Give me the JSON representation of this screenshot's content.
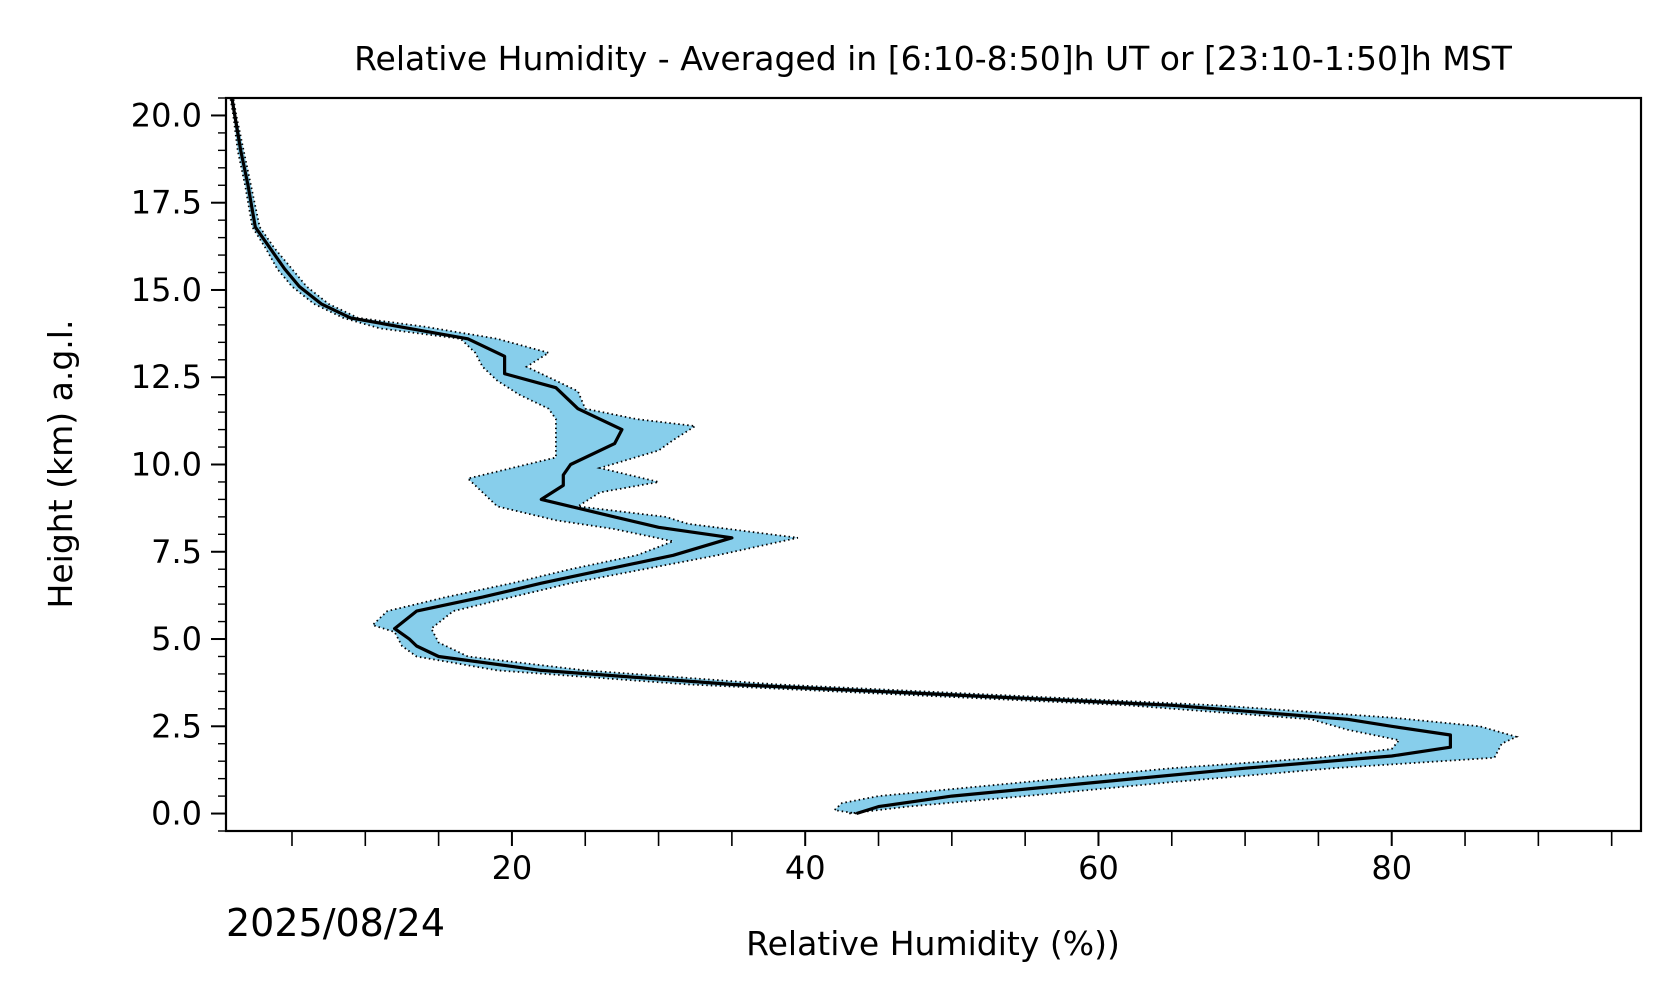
{
  "chart_data": {
    "type": "line",
    "title": "Relative Humidity - Averaged in [6:10-8:50]h UT or [23:10-1:50]h MST",
    "xlabel": "Relative Humidity (%))",
    "ylabel": "Height (km) a.g.l.",
    "date_label": "2025/08/24",
    "xlim": [
      0.5,
      97
    ],
    "ylim": [
      -0.5,
      20.5
    ],
    "xticks": [
      20,
      40,
      60,
      80
    ],
    "yticks": [
      0.0,
      2.5,
      5.0,
      7.5,
      10.0,
      12.5,
      15.0,
      17.5,
      20.0
    ],
    "ytick_labels": [
      "0.0",
      "2.5",
      "5.0",
      "7.5",
      "10.0",
      "12.5",
      "15.0",
      "17.5",
      "20.0"
    ],
    "grid": false,
    "colors": {
      "mean": "#000000",
      "band": "#87ceeb",
      "band_edge": "#000000"
    },
    "series": [
      {
        "role": "mean",
        "points": [
          [
            43.5,
            0.0
          ],
          [
            45.0,
            0.2
          ],
          [
            50.0,
            0.5
          ],
          [
            60.0,
            0.9
          ],
          [
            70.0,
            1.3
          ],
          [
            80.0,
            1.65
          ],
          [
            84.0,
            1.9
          ],
          [
            84.0,
            2.25
          ],
          [
            80.0,
            2.5
          ],
          [
            77.0,
            2.7
          ],
          [
            65.0,
            3.1
          ],
          [
            50.0,
            3.4
          ],
          [
            35.0,
            3.7
          ],
          [
            22.0,
            4.1
          ],
          [
            15.0,
            4.5
          ],
          [
            13.5,
            4.8
          ],
          [
            13.0,
            5.0
          ],
          [
            12.0,
            5.3
          ],
          [
            13.5,
            5.8
          ],
          [
            18.0,
            6.2
          ],
          [
            22.0,
            6.6
          ],
          [
            26.5,
            7.0
          ],
          [
            31.0,
            7.4
          ],
          [
            35.0,
            7.9
          ],
          [
            30.0,
            8.2
          ],
          [
            27.0,
            8.5
          ],
          [
            24.0,
            8.8
          ],
          [
            22.0,
            9.0
          ],
          [
            23.5,
            9.4
          ],
          [
            23.5,
            9.7
          ],
          [
            24.0,
            10.0
          ],
          [
            27.0,
            10.6
          ],
          [
            27.5,
            11.0
          ],
          [
            24.5,
            11.6
          ],
          [
            23.0,
            12.2
          ],
          [
            19.5,
            12.6
          ],
          [
            19.5,
            13.1
          ],
          [
            17.0,
            13.6
          ],
          [
            13.0,
            13.9
          ],
          [
            9.0,
            14.2
          ],
          [
            7.0,
            14.6
          ],
          [
            5.5,
            15.1
          ],
          [
            4.5,
            15.6
          ],
          [
            3.5,
            16.2
          ],
          [
            2.5,
            16.8
          ],
          [
            2.0,
            18.0
          ],
          [
            1.5,
            19.0
          ],
          [
            1.1,
            20.0
          ],
          [
            0.9,
            20.5
          ]
        ]
      },
      {
        "role": "upper",
        "points": [
          [
            43.0,
            0.0
          ],
          [
            47.0,
            0.2
          ],
          [
            55.0,
            0.5
          ],
          [
            65.0,
            0.9
          ],
          [
            76.0,
            1.3
          ],
          [
            87.0,
            1.6
          ],
          [
            87.5,
            2.0
          ],
          [
            88.5,
            2.2
          ],
          [
            86.0,
            2.5
          ],
          [
            80.0,
            2.75
          ],
          [
            68.0,
            3.1
          ],
          [
            53.0,
            3.4
          ],
          [
            38.0,
            3.7
          ],
          [
            25.0,
            4.1
          ],
          [
            17.0,
            4.5
          ],
          [
            15.0,
            4.9
          ],
          [
            14.5,
            5.3
          ],
          [
            16.0,
            5.8
          ],
          [
            20.0,
            6.2
          ],
          [
            24.0,
            6.6
          ],
          [
            29.0,
            7.0
          ],
          [
            34.0,
            7.4
          ],
          [
            39.5,
            7.9
          ],
          [
            32.0,
            8.3
          ],
          [
            30.5,
            8.5
          ],
          [
            24.5,
            8.8
          ],
          [
            26.0,
            9.2
          ],
          [
            30.0,
            9.5
          ],
          [
            26.0,
            9.9
          ],
          [
            30.0,
            10.4
          ],
          [
            31.0,
            10.7
          ],
          [
            32.5,
            11.1
          ],
          [
            28.5,
            11.3
          ],
          [
            25.0,
            11.6
          ],
          [
            24.5,
            12.1
          ],
          [
            22.5,
            12.5
          ],
          [
            21.0,
            12.8
          ],
          [
            22.5,
            13.2
          ],
          [
            19.0,
            13.6
          ],
          [
            14.0,
            13.95
          ],
          [
            9.5,
            14.2
          ],
          [
            7.5,
            14.6
          ],
          [
            6.0,
            15.1
          ],
          [
            5.0,
            15.6
          ],
          [
            3.8,
            16.2
          ],
          [
            2.8,
            16.8
          ],
          [
            2.2,
            18.0
          ],
          [
            1.7,
            19.0
          ],
          [
            1.2,
            20.0
          ],
          [
            1.0,
            20.5
          ]
        ]
      },
      {
        "role": "lower",
        "points": [
          [
            43.5,
            0.0
          ],
          [
            42.0,
            0.1
          ],
          [
            42.5,
            0.3
          ],
          [
            45.0,
            0.5
          ],
          [
            55.0,
            0.9
          ],
          [
            65.0,
            1.3
          ],
          [
            75.0,
            1.6
          ],
          [
            80.0,
            1.85
          ],
          [
            80.5,
            2.1
          ],
          [
            77.0,
            2.4
          ],
          [
            74.5,
            2.7
          ],
          [
            62.0,
            3.1
          ],
          [
            47.0,
            3.4
          ],
          [
            32.0,
            3.7
          ],
          [
            19.0,
            4.1
          ],
          [
            13.5,
            4.5
          ],
          [
            12.5,
            4.8
          ],
          [
            12.0,
            5.2
          ],
          [
            10.5,
            5.4
          ],
          [
            11.5,
            5.8
          ],
          [
            15.5,
            6.2
          ],
          [
            20.0,
            6.6
          ],
          [
            24.0,
            7.0
          ],
          [
            28.5,
            7.4
          ],
          [
            31.0,
            7.8
          ],
          [
            27.0,
            8.15
          ],
          [
            23.0,
            8.4
          ],
          [
            19.0,
            8.8
          ],
          [
            18.0,
            9.2
          ],
          [
            17.0,
            9.6
          ],
          [
            20.0,
            9.9
          ],
          [
            23.0,
            10.2
          ],
          [
            23.0,
            10.9
          ],
          [
            23.0,
            11.3
          ],
          [
            22.5,
            11.6
          ],
          [
            20.5,
            12.0
          ],
          [
            19.0,
            12.4
          ],
          [
            18.0,
            12.8
          ],
          [
            17.5,
            13.2
          ],
          [
            16.5,
            13.6
          ],
          [
            11.0,
            13.9
          ],
          [
            8.5,
            14.2
          ],
          [
            6.5,
            14.6
          ],
          [
            5.0,
            15.1
          ],
          [
            4.0,
            15.6
          ],
          [
            3.2,
            16.2
          ],
          [
            2.3,
            16.8
          ],
          [
            1.8,
            18.0
          ],
          [
            1.3,
            19.0
          ],
          [
            1.0,
            20.0
          ],
          [
            0.8,
            20.5
          ]
        ]
      }
    ]
  }
}
